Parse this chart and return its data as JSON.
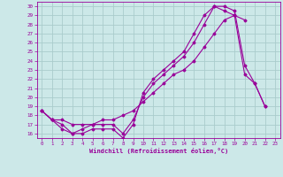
{
  "xlabel": "Windchill (Refroidissement éolien,°C)",
  "background_color": "#cce8e8",
  "grid_color": "#aacccc",
  "line_color": "#990099",
  "xlim": [
    -0.5,
    23.5
  ],
  "ylim": [
    15.5,
    30.5
  ],
  "xticks": [
    0,
    1,
    2,
    3,
    4,
    5,
    6,
    7,
    8,
    9,
    10,
    11,
    12,
    13,
    14,
    15,
    16,
    17,
    18,
    19,
    20,
    21,
    22,
    23
  ],
  "yticks": [
    16,
    17,
    18,
    19,
    20,
    21,
    22,
    23,
    24,
    25,
    26,
    27,
    28,
    29,
    30
  ],
  "series": [
    {
      "x": [
        0,
        1,
        2,
        3,
        4,
        5,
        6,
        7,
        8,
        9,
        10,
        11,
        12,
        13,
        14,
        15,
        16,
        17,
        18,
        19,
        20,
        21,
        22
      ],
      "y": [
        18.5,
        17.5,
        16.5,
        16.0,
        16.5,
        17.0,
        17.0,
        17.0,
        16.0,
        17.5,
        20.0,
        21.5,
        22.5,
        23.5,
        24.5,
        26.0,
        28.0,
        30.0,
        30.0,
        29.5,
        23.5,
        21.5,
        19.0
      ]
    },
    {
      "x": [
        0,
        1,
        2,
        3,
        4,
        5,
        6,
        7,
        8,
        9,
        10,
        11,
        12,
        13,
        14,
        15,
        16,
        17,
        18,
        19,
        20
      ],
      "y": [
        18.5,
        17.5,
        17.5,
        17.0,
        17.0,
        17.0,
        17.5,
        17.5,
        18.0,
        18.5,
        19.5,
        20.5,
        21.5,
        22.5,
        23.0,
        24.0,
        25.5,
        27.0,
        28.5,
        29.0,
        28.5
      ]
    },
    {
      "x": [
        0,
        1,
        2,
        3,
        4,
        5,
        6,
        7,
        8,
        9,
        10,
        11,
        12,
        13,
        14,
        15,
        16,
        17,
        18,
        19,
        20,
        21,
        22
      ],
      "y": [
        18.5,
        17.5,
        17.0,
        16.0,
        16.0,
        16.5,
        16.5,
        16.5,
        15.5,
        17.0,
        20.5,
        22.0,
        23.0,
        24.0,
        25.0,
        27.0,
        29.0,
        30.0,
        29.5,
        29.0,
        22.5,
        21.5,
        19.0
      ]
    }
  ]
}
